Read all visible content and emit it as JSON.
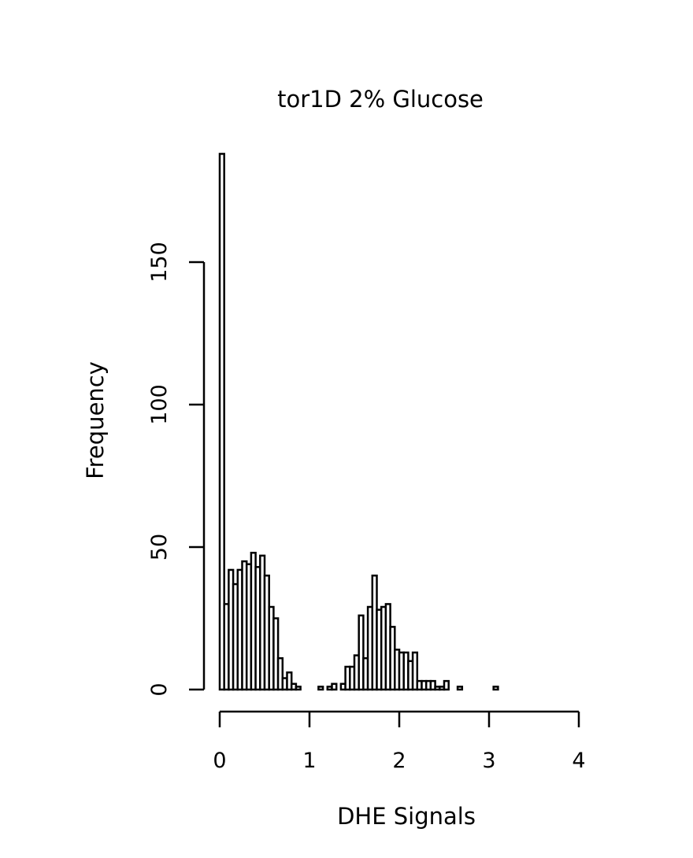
{
  "chart_data": {
    "type": "bar",
    "title": "tor1D 2% Glucose",
    "xlabel": "DHE Signals",
    "ylabel": "Frequency",
    "xlim": [
      0,
      4
    ],
    "ylim": [
      0,
      190
    ],
    "x_ticks": [
      "0",
      "1",
      "2",
      "3",
      "4"
    ],
    "y_ticks": [
      "0",
      "50",
      "100",
      "150"
    ],
    "bin_width": 0.05,
    "bins_start": [
      0.0,
      0.05,
      0.1,
      0.15,
      0.2,
      0.25,
      0.3,
      0.35,
      0.4,
      0.45,
      0.5,
      0.55,
      0.6,
      0.65,
      0.7,
      0.75,
      0.8,
      0.85,
      0.9,
      0.95,
      1.0,
      1.05,
      1.1,
      1.15,
      1.2,
      1.25,
      1.3,
      1.35,
      1.4,
      1.45,
      1.5,
      1.55,
      1.6,
      1.65,
      1.7,
      1.75,
      1.8,
      1.85,
      1.9,
      1.95,
      2.0,
      2.05,
      2.1,
      2.15,
      2.2,
      2.25,
      2.3,
      2.35,
      2.4,
      2.45,
      2.5,
      2.55,
      2.6,
      2.65,
      2.7,
      2.75,
      2.8,
      2.85,
      2.9,
      2.95,
      3.0,
      3.05
    ],
    "values": [
      188,
      30,
      42,
      37,
      42,
      45,
      44,
      48,
      43,
      47,
      40,
      29,
      25,
      11,
      4,
      6,
      2,
      1,
      0,
      0,
      0,
      0,
      1,
      0,
      1,
      2,
      0,
      2,
      8,
      8,
      12,
      26,
      11,
      29,
      40,
      28,
      29,
      30,
      22,
      14,
      13,
      13,
      10,
      13,
      3,
      3,
      3,
      3,
      1,
      1,
      3,
      0,
      0,
      1,
      0,
      0,
      0,
      0,
      0,
      0,
      0,
      1
    ]
  }
}
